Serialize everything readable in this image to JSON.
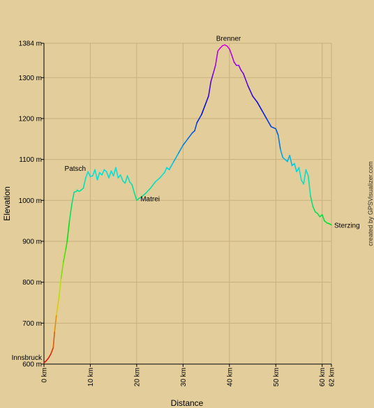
{
  "chart_data": {
    "type": "line",
    "xlabel": "Distance",
    "ylabel": "Elevation",
    "credit": "created by GPSVisualizer.com",
    "xlim": [
      0,
      62
    ],
    "ylim": [
      600,
      1384
    ],
    "x_ticks": [
      {
        "value": 0,
        "label": "0 km"
      },
      {
        "value": 10,
        "label": "10 km"
      },
      {
        "value": 20,
        "label": "20 km"
      },
      {
        "value": 30,
        "label": "30 km"
      },
      {
        "value": 40,
        "label": "40 km"
      },
      {
        "value": 50,
        "label": "50 km"
      },
      {
        "value": 60,
        "label": "60 km"
      },
      {
        "value": 62,
        "label": "62 km"
      }
    ],
    "y_ticks": [
      {
        "value": 600,
        "label": "600 m"
      },
      {
        "value": 700,
        "label": "700 m"
      },
      {
        "value": 800,
        "label": "800 m"
      },
      {
        "value": 900,
        "label": "900 m"
      },
      {
        "value": 1000,
        "label": "1000 m"
      },
      {
        "value": 1100,
        "label": "1100 m"
      },
      {
        "value": 1200,
        "label": "1200 m"
      },
      {
        "value": 1300,
        "label": "1300 m"
      },
      {
        "value": 1384,
        "label": "1384 m"
      }
    ],
    "annotations": [
      {
        "label": "Innsbruck",
        "x": 0,
        "y": 603,
        "anchor": "left"
      },
      {
        "label": "Patsch",
        "x": 9.5,
        "y": 1065,
        "anchor": "left"
      },
      {
        "label": "Matrei",
        "x": 20.2,
        "y": 1005,
        "anchor": "right"
      },
      {
        "label": "Brenner",
        "x": 39.2,
        "y": 1380,
        "anchor": "top"
      },
      {
        "label": "Sterzing",
        "x": 62,
        "y": 940,
        "anchor": "right"
      }
    ],
    "series": [
      {
        "x": [
          0,
          0.5,
          1.0,
          1.5,
          2.0,
          2.3,
          2.7,
          3.2,
          3.7,
          4.2,
          4.7,
          5.0,
          5.5,
          6.0,
          6.5,
          7.0,
          7.2,
          7.6,
          8.0,
          8.5,
          9.0,
          9.5,
          10.0,
          10.5,
          11.0,
          11.5,
          12.0,
          12.5,
          13.0,
          13.5,
          14.0,
          14.5,
          15.0,
          15.5,
          16.0,
          16.5,
          17.0,
          17.5,
          18.0,
          18.5,
          19.0,
          19.5,
          20.0,
          20.5,
          21.0,
          22.0,
          23.0,
          24.0,
          25.0,
          26.0,
          26.5,
          27.0,
          28.0,
          29.0,
          30.0,
          31.0,
          32.0,
          32.5,
          33.0,
          34.0,
          35.0,
          35.5,
          36.0,
          36.5,
          37.0,
          37.5,
          38.0,
          38.5,
          39.0,
          39.5,
          40.0,
          40.5,
          41.0,
          41.5,
          42.0,
          42.5,
          43.0,
          44.0,
          45.0,
          46.0,
          47.0,
          48.0,
          49.0,
          50.0,
          50.5,
          51.0,
          51.5,
          52.0,
          52.5,
          53.0,
          53.5,
          54.0,
          54.5,
          55.0,
          55.5,
          56.0,
          56.5,
          57.0,
          57.5,
          58.0,
          58.5,
          59.0,
          59.5,
          60.0,
          60.5,
          61.0,
          61.5,
          62.0
        ],
        "y": [
          603,
          608,
          615,
          625,
          640,
          680,
          720,
          760,
          810,
          850,
          880,
          900,
          950,
          990,
          1020,
          1022,
          1025,
          1022,
          1025,
          1030,
          1055,
          1070,
          1058,
          1060,
          1075,
          1050,
          1068,
          1062,
          1075,
          1070,
          1055,
          1072,
          1060,
          1080,
          1055,
          1062,
          1048,
          1042,
          1060,
          1045,
          1038,
          1018,
          1000,
          1005,
          1008,
          1018,
          1030,
          1045,
          1055,
          1068,
          1080,
          1075,
          1095,
          1115,
          1135,
          1150,
          1165,
          1170,
          1190,
          1210,
          1240,
          1255,
          1290,
          1310,
          1330,
          1365,
          1372,
          1378,
          1380,
          1377,
          1370,
          1355,
          1338,
          1330,
          1330,
          1318,
          1310,
          1280,
          1255,
          1240,
          1220,
          1200,
          1180,
          1175,
          1160,
          1125,
          1105,
          1100,
          1095,
          1110,
          1085,
          1090,
          1070,
          1080,
          1050,
          1040,
          1075,
          1060,
          1010,
          985,
          972,
          968,
          960,
          965,
          950,
          945,
          943,
          940
        ]
      }
    ]
  }
}
